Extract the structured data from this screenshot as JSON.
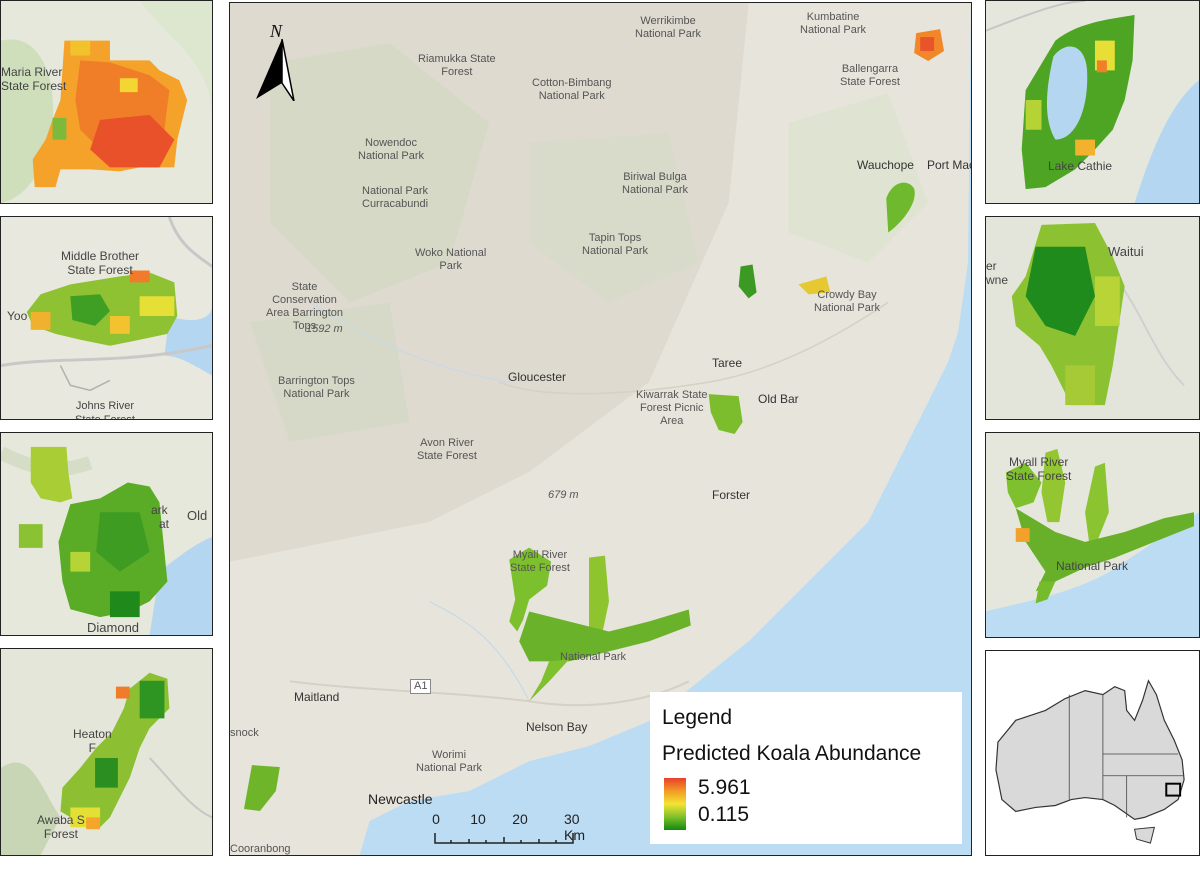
{
  "main_map": {
    "places": {
      "werrikimbe": "Werrikimbe\nNational Park",
      "kumbatine": "Kumbatine\nNational Park",
      "riamukka": "Riamukka State\nForest",
      "ballengarra": "Ballengarra\nState Forest",
      "cotton_bimbang": "Cotton-Bimbang\nNational Park",
      "nowendoc": "Nowendoc\nNational Park",
      "wauchope": "Wauchope",
      "port_mac": "Port Mac",
      "biriwal": "Biriwal Bulga\nNational Park",
      "np_curracabundi": "National Park\nCurracabundi",
      "tapin_tops": "Tapin Tops\nNational Park",
      "woko": "Woko National\nPark",
      "state_conservation": "State\nConservation\nArea Barrington\nTops",
      "elev_1592": "1592 m",
      "crowdy_bay": "Crowdy Bay\nNational Park",
      "taree": "Taree",
      "gloucester": "Gloucester",
      "barrington_tops": "Barrington Tops\nNational Park",
      "kiwarrak": "Kiwarrak State\nForest Picnic\nArea",
      "old_bar": "Old Bar",
      "avon_river": "Avon River\nState Forest",
      "elev_679": "679 m",
      "forster": "Forster",
      "myall_river": "Myall River\nState Forest",
      "national_park": "National Park",
      "maitland": "Maitland",
      "a1": "A1",
      "nelson_bay": "Nelson Bay",
      "snock": "snock",
      "worimi": "Worimi\nNational Park",
      "newcastle": "Newcastle",
      "cooranbong": "Cooranbong"
    },
    "north_label": "N",
    "scale": {
      "ticks": [
        "0",
        "10",
        "20",
        "30 Km"
      ]
    }
  },
  "legend": {
    "title": "Legend",
    "subtitle": "Predicted Koala Abundance",
    "max": "5.961",
    "min": "0.115",
    "colors": {
      "high": "#e8402a",
      "mid": "#f4e332",
      "low": "#128a10"
    }
  },
  "insets_left": {
    "inset1": {
      "label": "Maria River\nState Forest"
    },
    "inset2": {
      "label_top": "Middle Brother\nState Forest",
      "label_left": "Yoo",
      "label_bottom": "Johns River\nState Forest"
    },
    "inset3": {
      "label_right1": "ark",
      "label_right2": "at",
      "label_old": "Old",
      "label_bottom": "Diamond"
    },
    "inset4": {
      "label_mid": "Heaton\nF",
      "label_bottom": "Awaba S\nForest"
    }
  },
  "insets_right": {
    "inset5": {
      "label": "Lake Cathie"
    },
    "inset6": {
      "label_right": "Waitui",
      "label_left": "er\nwne"
    },
    "inset7": {
      "label_top": "Myall River\nState Forest",
      "label_bottom": "National Park"
    }
  }
}
